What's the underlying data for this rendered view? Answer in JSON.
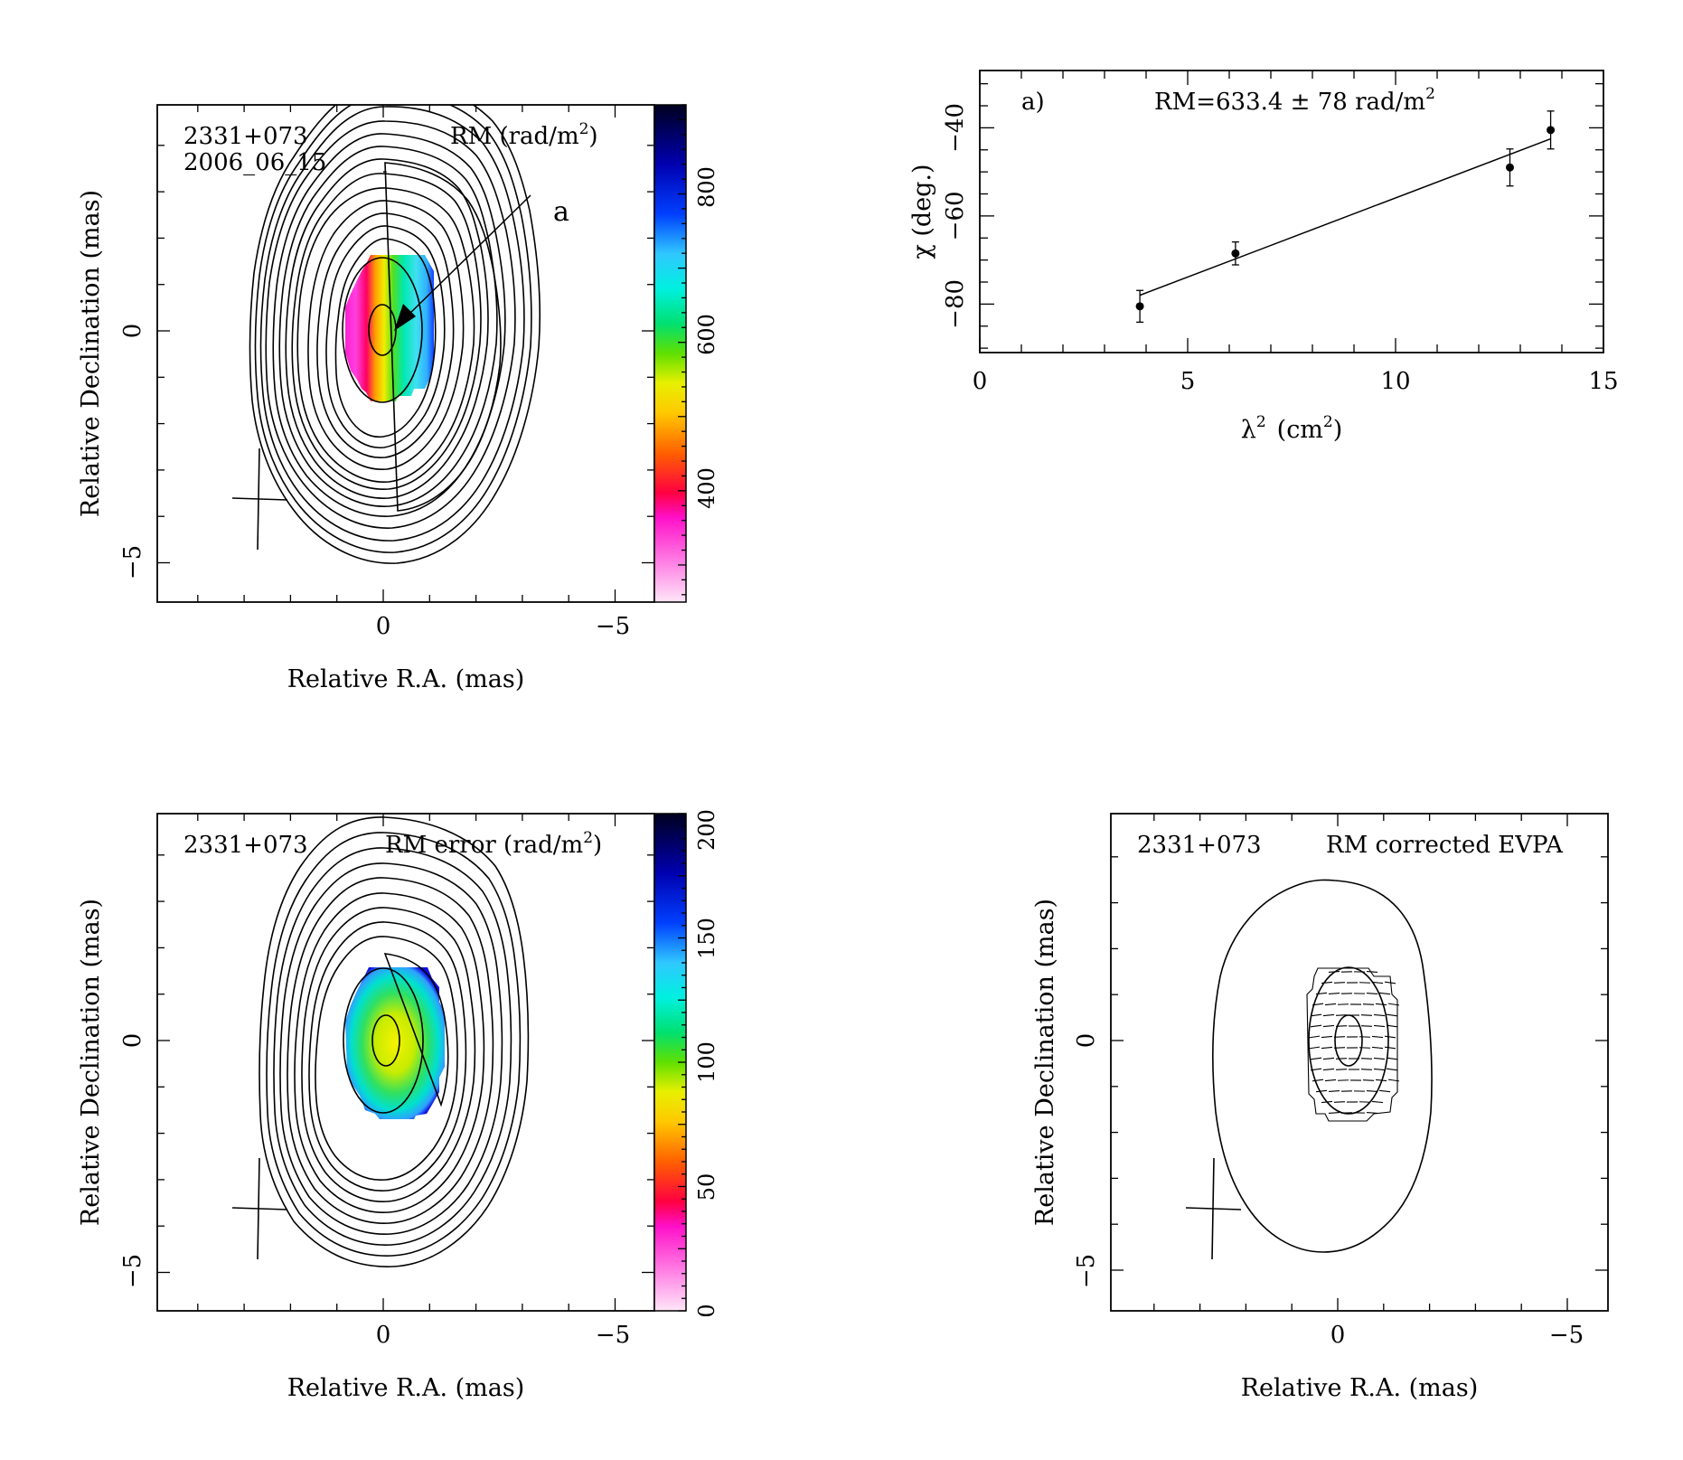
{
  "chart_data": [
    {
      "panel": "rm-map",
      "type": "heatmap",
      "source": "2331+073",
      "epoch": "2006_06_15",
      "quantity_label": "RM (rad/m",
      "quantity_label_tail": ")",
      "quantity_label_sup": "2",
      "xlabel": "Relative R.A. (mas)",
      "ylabel": "Relative Declination (mas)",
      "x_ticks": [
        "0",
        "−5"
      ],
      "y_ticks": [
        "0",
        "−5"
      ],
      "colorbar_ticks": [
        "400",
        "600",
        "800"
      ],
      "colorbar_range": [
        250,
        920
      ],
      "annotation": "a"
    },
    {
      "panel": "rm-fit",
      "type": "scatter",
      "label": "a)",
      "fit_label": "RM=633.4 ± 78 rad/m",
      "fit_label_sup": "2",
      "xlabel": "λ",
      "xlabel_sup": "2",
      "xlabel_unit": "(cm",
      "xlabel_unit_sup": "2",
      "xlabel_unit_close": ")",
      "ylabel": "χ (deg.)",
      "xlim": [
        0,
        15
      ],
      "ylim": [
        -91,
        -27
      ],
      "x_ticks": [
        "0",
        "5",
        "10",
        "15"
      ],
      "y_ticks": [
        "−40",
        "−60",
        "−80"
      ],
      "points": [
        {
          "x": 3.85,
          "y": -80.5,
          "err": 3.6
        },
        {
          "x": 6.15,
          "y": -68.5,
          "err": 2.6
        },
        {
          "x": 12.75,
          "y": -49.0,
          "err": 4.2
        },
        {
          "x": 13.73,
          "y": -40.5,
          "err": 4.3
        }
      ],
      "fit_line": {
        "x": [
          3.85,
          13.73
        ],
        "y": [
          -78.0,
          -42.5
        ]
      }
    },
    {
      "panel": "rm-error-map",
      "type": "heatmap",
      "source": "2331+073",
      "quantity_label": "RM error (rad/m",
      "quantity_label_tail": ")",
      "quantity_label_sup": "2",
      "xlabel": "Relative R.A. (mas)",
      "ylabel": "Relative Declination (mas)",
      "x_ticks": [
        "0",
        "−5"
      ],
      "y_ticks": [
        "0",
        "−5"
      ],
      "colorbar_ticks": [
        "0",
        "50",
        "100",
        "150",
        "200"
      ],
      "colorbar_range": [
        0,
        200
      ]
    },
    {
      "panel": "evpa-map",
      "type": "contour",
      "source": "2331+073",
      "quantity_label": "RM corrected EVPA",
      "xlabel": "Relative R.A. (mas)",
      "ylabel": "Relative Declination (mas)",
      "x_ticks": [
        "0",
        "−5"
      ],
      "y_ticks": [
        "0",
        "−5"
      ]
    }
  ],
  "colors": {
    "rainbow": [
      "#ffd8f4",
      "#ff70e0",
      "#ff10c0",
      "#ff0030",
      "#ff7000",
      "#ffd000",
      "#e0f000",
      "#60e000",
      "#00e060",
      "#00f0d0",
      "#30d0ff",
      "#0050ff",
      "#0000c0",
      "#000030"
    ]
  }
}
